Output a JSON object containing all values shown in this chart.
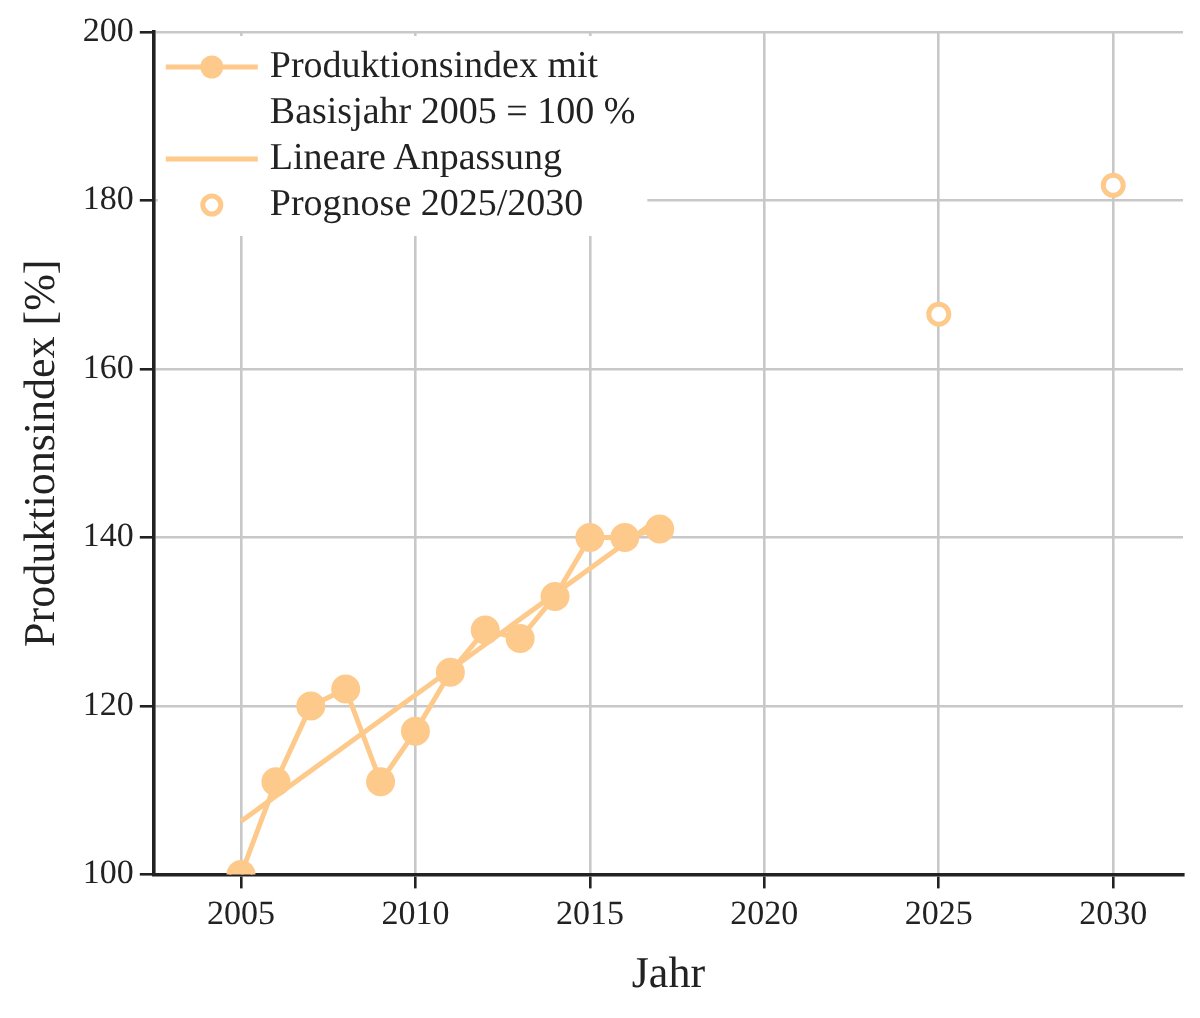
{
  "chart_data": {
    "type": "line",
    "xlabel": "Jahr",
    "ylabel": "Produktionsindex [%]",
    "xlim": [
      2002.5,
      2032
    ],
    "xticks": [
      2005,
      2010,
      2015,
      2020,
      2025,
      2030
    ],
    "ylim": [
      100,
      200
    ],
    "yticks": [
      100,
      120,
      140,
      160,
      180,
      200
    ],
    "grid": true,
    "legend": "top left",
    "line_style": "solid",
    "series": [
      {
        "name": "Produktionsindex mit Basisjahr 2005 = 100 %",
        "color": "#fdca8c",
        "marker": "circle",
        "x": [
          2005,
          2006,
          2007,
          2008,
          2009,
          2010,
          2011,
          2012,
          2013,
          2014,
          2015,
          2016,
          2017
        ],
        "values": [
          100,
          111,
          120,
          122,
          111,
          117,
          124,
          129,
          128,
          133,
          140,
          140,
          141
        ]
      },
      {
        "name": "Lineare Anpassung",
        "color": "#fdca8c",
        "marker": "none",
        "x": [
          2005,
          2017
        ],
        "values": [
          106.3,
          142.3
        ]
      },
      {
        "name": "Prognose 2025/2030",
        "type": "scatter",
        "color": "#fdca8c",
        "marker": "circle",
        "x": [
          2025,
          2030
        ],
        "values": [
          166.5,
          181.8
        ]
      }
    ]
  }
}
